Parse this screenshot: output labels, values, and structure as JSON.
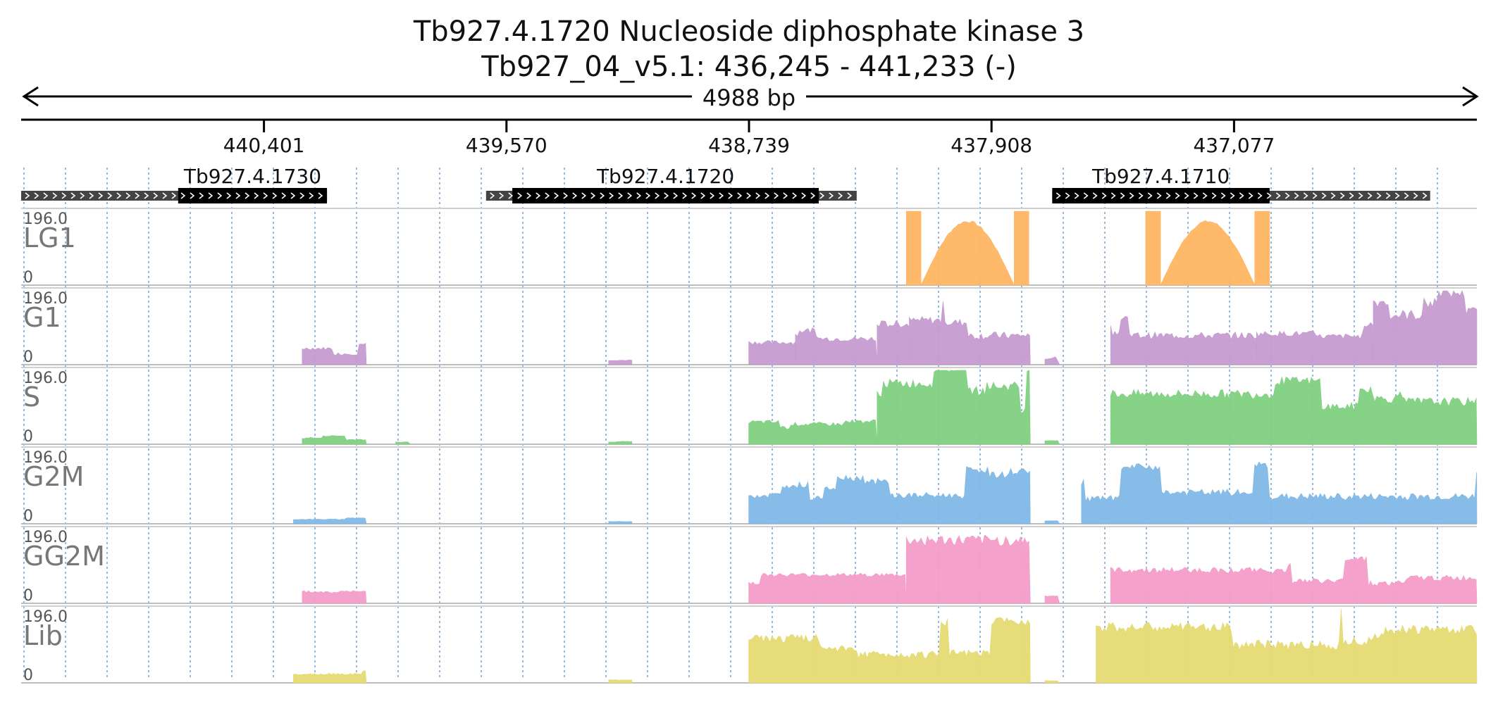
{
  "header": {
    "title_line1": "Tb927.4.1720  Nucleoside diphosphate kinase 3",
    "title_line2": "Tb927_04_v5.1: 436,245 - 441,233 (-)",
    "span_label": "4988 bp"
  },
  "axis": {
    "region_start": 436245,
    "region_end": 441233,
    "strand": "-",
    "ticks": [
      {
        "pos": 440401,
        "label": "440,401"
      },
      {
        "pos": 439570,
        "label": "439,570"
      },
      {
        "pos": 438739,
        "label": "438,739"
      },
      {
        "pos": 437908,
        "label": "437,908"
      },
      {
        "pos": 437077,
        "label": "437,077"
      }
    ]
  },
  "genes": [
    {
      "id": "Tb927.4.1730",
      "utr": [
        441233,
        440185
      ],
      "cds": [
        440695,
        440185
      ]
    },
    {
      "id": "Tb927.4.1720",
      "utr": [
        439640,
        438370
      ],
      "cds": [
        439550,
        438500
      ]
    },
    {
      "id": "Tb927.4.1710",
      "utr": [
        437700,
        436405
      ],
      "cds": [
        437700,
        436955
      ]
    }
  ],
  "tracks": [
    {
      "name": "LG1",
      "max_label": "196.0",
      "min_label": "0",
      "color": "#ffb562",
      "segments": [
        {
          "start": 438200,
          "end": 437780,
          "shape": "flank_hump",
          "level": 1.0,
          "hump": 0.88
        },
        {
          "start": 437380,
          "end": 436955,
          "shape": "flank_hump",
          "level": 1.0,
          "hump": 0.88
        }
      ]
    },
    {
      "name": "G1",
      "max_label": "196.0",
      "min_label": "0",
      "color": "#c59bcf",
      "segments": [
        {
          "start": 440270,
          "end": 440050,
          "shape": "rough",
          "level": 0.22
        },
        {
          "start": 439220,
          "end": 439140,
          "shape": "rough",
          "level": 0.06
        },
        {
          "start": 438190,
          "end": 437775,
          "shape": "rough",
          "level": 0.6
        },
        {
          "start": 438300,
          "end": 438190,
          "shape": "rough",
          "level": 0.55
        },
        {
          "start": 438580,
          "end": 438300,
          "shape": "rough",
          "level": 0.4
        },
        {
          "start": 438580,
          "end": 438740,
          "shape": "rough",
          "level": 0.3
        },
        {
          "start": 437725,
          "end": 437675,
          "shape": "rough",
          "level": 0.08
        },
        {
          "start": 437500,
          "end": 437000,
          "shape": "rough",
          "level": 0.55
        },
        {
          "start": 437000,
          "end": 436600,
          "shape": "rough",
          "level": 0.42
        },
        {
          "start": 436600,
          "end": 436245,
          "shape": "rough",
          "level": 0.85
        }
      ]
    },
    {
      "name": "S",
      "max_label": "196.0",
      "min_label": "0",
      "color": "#80d080",
      "segments": [
        {
          "start": 440270,
          "end": 440050,
          "shape": "rough",
          "level": 0.08
        },
        {
          "start": 439950,
          "end": 439900,
          "shape": "rough",
          "level": 0.03
        },
        {
          "start": 439220,
          "end": 439140,
          "shape": "rough",
          "level": 0.03
        },
        {
          "start": 438740,
          "end": 438300,
          "shape": "rough",
          "level": 0.3
        },
        {
          "start": 438300,
          "end": 437775,
          "shape": "rough",
          "level": 0.7
        },
        {
          "start": 437725,
          "end": 437675,
          "shape": "rough",
          "level": 0.05
        },
        {
          "start": 437500,
          "end": 436245,
          "shape": "rough",
          "level": 0.68
        }
      ]
    },
    {
      "name": "G2M",
      "max_label": "196.0",
      "min_label": "0",
      "color": "#7fb8e6",
      "segments": [
        {
          "start": 440300,
          "end": 440050,
          "shape": "rough",
          "level": 0.06
        },
        {
          "start": 439220,
          "end": 439140,
          "shape": "rough",
          "level": 0.03
        },
        {
          "start": 438740,
          "end": 437775,
          "shape": "rough",
          "level": 0.5
        },
        {
          "start": 437725,
          "end": 437675,
          "shape": "rough",
          "level": 0.04
        },
        {
          "start": 437600,
          "end": 436245,
          "shape": "rough",
          "level": 0.55
        }
      ]
    },
    {
      "name": "GG2M",
      "max_label": "196.0",
      "min_label": "0",
      "color": "#f39cc8",
      "segments": [
        {
          "start": 440270,
          "end": 440050,
          "shape": "rough",
          "level": 0.16
        },
        {
          "start": 438740,
          "end": 438200,
          "shape": "rough",
          "level": 0.28
        },
        {
          "start": 438200,
          "end": 437775,
          "shape": "rough",
          "level": 0.85
        },
        {
          "start": 437725,
          "end": 437675,
          "shape": "rough",
          "level": 0.1
        },
        {
          "start": 437500,
          "end": 436245,
          "shape": "rough",
          "level": 0.45
        }
      ]
    },
    {
      "name": "Lib",
      "max_label": "196.0",
      "min_label": "0",
      "color": "#e5da72",
      "segments": [
        {
          "start": 440300,
          "end": 440050,
          "shape": "rough",
          "level": 0.12
        },
        {
          "start": 439220,
          "end": 439140,
          "shape": "rough",
          "level": 0.04
        },
        {
          "start": 438740,
          "end": 437775,
          "shape": "rough",
          "level": 0.6
        },
        {
          "start": 437725,
          "end": 437675,
          "shape": "rough",
          "level": 0.03
        },
        {
          "start": 437550,
          "end": 436245,
          "shape": "rough",
          "level": 0.75
        }
      ]
    }
  ],
  "colors": {
    "axis": "#000000",
    "gridline": "#7aa7d8",
    "track_border": "#cfcfcf",
    "cds_fill": "#000000",
    "utr_fill": "#444444",
    "overflow": "#d23c3c"
  }
}
